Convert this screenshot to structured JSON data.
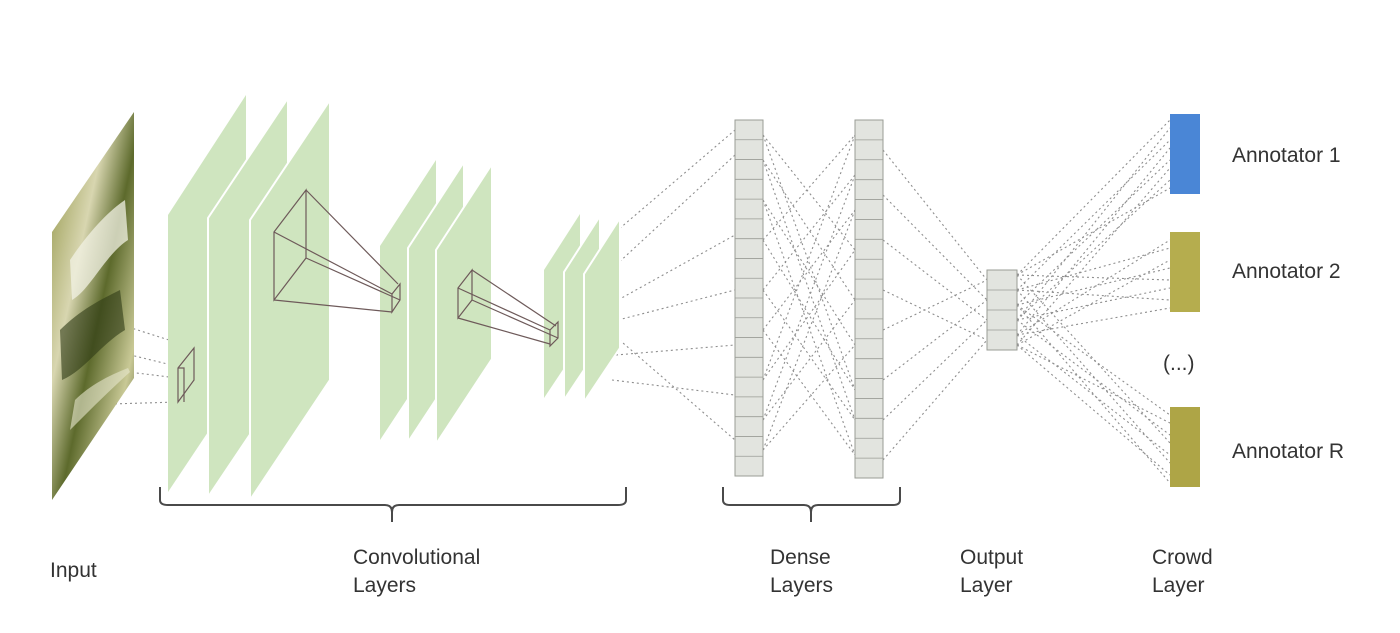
{
  "labels": {
    "input": "Input",
    "conv_1": "Convolutional",
    "conv_2": "Layers",
    "dense_1": "Dense",
    "dense_2": "Layers",
    "output_1": "Output",
    "output_2": "Layer",
    "crowd_1": "Crowd",
    "crowd_2": "Layer"
  },
  "annotators": [
    {
      "label": "Annotator 1",
      "color": "#4a86d6"
    },
    {
      "label": "Annotator 2",
      "color": "#b5ad4e"
    },
    {
      "label": "Annotator R",
      "color": "#aea546"
    }
  ],
  "ellipsis": "(...)",
  "colors": {
    "conv_fill": "#cfe5bf",
    "dense_fill": "#e2e4df",
    "dense_stroke": "#9a9c96",
    "connection": "#8e8e8e",
    "filter_box": "#6e5a5a",
    "bracket": "#4a4a4a"
  }
}
